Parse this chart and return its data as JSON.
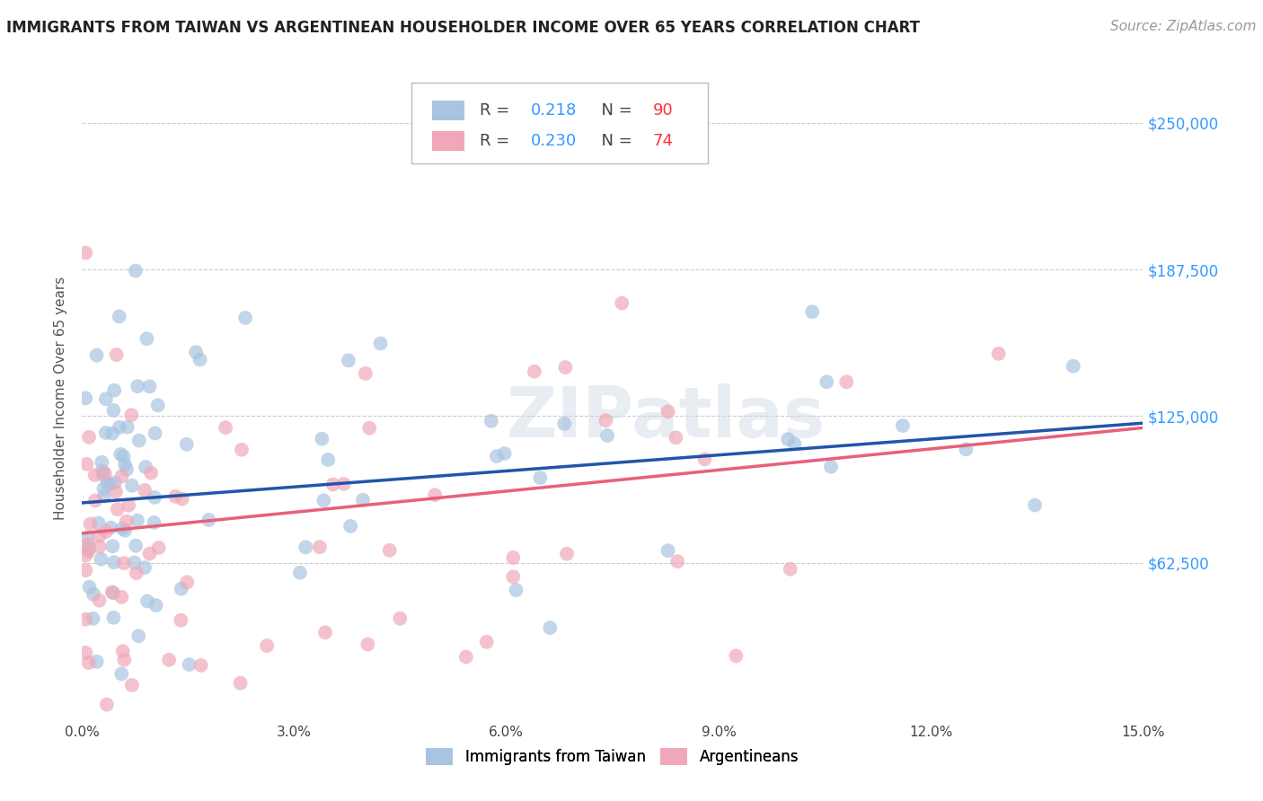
{
  "title": "IMMIGRANTS FROM TAIWAN VS ARGENTINEAN HOUSEHOLDER INCOME OVER 65 YEARS CORRELATION CHART",
  "source": "Source: ZipAtlas.com",
  "ylabel": "Householder Income Over 65 years",
  "xlabel_ticks": [
    "0.0%",
    "3.0%",
    "6.0%",
    "9.0%",
    "12.0%",
    "15.0%"
  ],
  "xlabel_vals": [
    0.0,
    3.0,
    6.0,
    9.0,
    12.0,
    15.0
  ],
  "ytick_labels": [
    "$62,500",
    "$125,000",
    "$187,500",
    "$250,000"
  ],
  "ytick_vals": [
    62500,
    125000,
    187500,
    250000
  ],
  "xlim": [
    0.0,
    15.0
  ],
  "ylim": [
    -5000,
    270000
  ],
  "taiwan_R": 0.218,
  "taiwan_N": 90,
  "arg_R": 0.23,
  "arg_N": 74,
  "taiwan_color": "#a8c4e0",
  "arg_color": "#f0a8b8",
  "taiwan_line_color": "#2255aa",
  "arg_line_color": "#e8607a",
  "legend_label_taiwan": "Immigrants from Taiwan",
  "legend_label_arg": "Argentineans",
  "watermark": "ZIPatlas",
  "background_color": "#ffffff",
  "grid_color": "#cccccc",
  "right_axis_color": "#3399ff",
  "title_fontsize": 12,
  "axis_label_fontsize": 11,
  "legend_fontsize": 13,
  "source_fontsize": 11,
  "taiwan_line_x0": 0.0,
  "taiwan_line_y0": 88000,
  "taiwan_line_x1": 15.0,
  "taiwan_line_y1": 122000,
  "arg_line_x0": 0.0,
  "arg_line_y0": 75000,
  "arg_line_x1": 15.0,
  "arg_line_y1": 120000
}
